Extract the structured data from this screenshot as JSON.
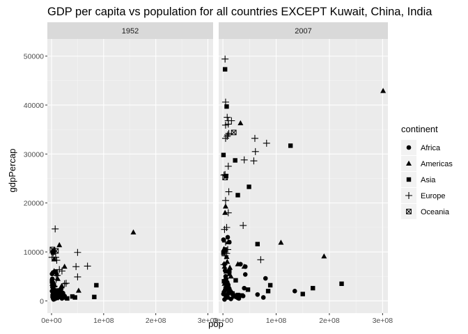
{
  "chart_data": {
    "type": "scatter",
    "title": "GDP per capita vs population for all countries EXCEPT Kuwait, China, India",
    "xlabel": "pop",
    "ylabel": "gdpPercap",
    "xlim": [
      -8000000,
      310000000
    ],
    "ylim": [
      -2500,
      53500
    ],
    "x_ticks": [
      0,
      100000000,
      200000000,
      300000000
    ],
    "x_tick_labels": [
      "0e+00",
      "1e+08",
      "2e+08",
      "3e+08"
    ],
    "y_ticks": [
      0,
      10000,
      20000,
      30000,
      40000,
      50000
    ],
    "y_tick_labels": [
      "0",
      "10000",
      "20000",
      "30000",
      "40000",
      "50000"
    ],
    "panel_background": "#ebebeb",
    "strip_background": "#d9d9d9",
    "grid": true,
    "legend": {
      "title": "continent",
      "position": "right",
      "entries": [
        {
          "label": "Africa",
          "shape": "circle"
        },
        {
          "label": "Americas",
          "shape": "triangle"
        },
        {
          "label": "Asia",
          "shape": "square"
        },
        {
          "label": "Europe",
          "shape": "plus"
        },
        {
          "label": "Oceania",
          "shape": "square-cross"
        }
      ]
    },
    "panels": [
      {
        "label": "1952",
        "series": [
          {
            "continent": "Africa",
            "points": [
              [
                3000000,
                500
              ],
              [
                5000000,
                800
              ],
              [
                2000000,
                1200
              ],
              [
                8000000,
                1500
              ],
              [
                1000000,
                2000
              ],
              [
                4000000,
                1000
              ],
              [
                6000000,
                600
              ],
              [
                10000000,
                900
              ],
              [
                3000000,
                2500
              ],
              [
                2000000,
                3500
              ],
              [
                7000000,
                1800
              ],
              [
                12000000,
                700
              ],
              [
                15000000,
                1100
              ],
              [
                20000000,
                500
              ],
              [
                1500000,
                4500
              ],
              [
                4000000,
                300
              ],
              [
                9000000,
                1300
              ],
              [
                22000000,
                1600
              ],
              [
                5000000,
                2200
              ],
              [
                3000000,
                1700
              ],
              [
                6000000,
                400
              ],
              [
                2000000,
                800
              ],
              [
                11000000,
                1000
              ],
              [
                1000000,
                5500
              ],
              [
                3000000,
                5800
              ],
              [
                2000000,
                2800
              ],
              [
                13000000,
                2100
              ],
              [
                8000000,
                500
              ],
              [
                5000000,
                1400
              ],
              [
                25000000,
                1000
              ]
            ]
          },
          {
            "continent": "Americas",
            "points": [
              [
                157000000,
                14000
              ],
              [
                15000000,
                11400
              ],
              [
                5000000,
                8500
              ],
              [
                25000000,
                7000
              ],
              [
                9000000,
                5900
              ],
              [
                52000000,
                2100
              ],
              [
                12000000,
                4500
              ],
              [
                4000000,
                3800
              ],
              [
                6000000,
                3200
              ],
              [
                3000000,
                2600
              ],
              [
                2000000,
                2300
              ],
              [
                8000000,
                2000
              ],
              [
                10000000,
                5500
              ],
              [
                1500000,
                3500
              ],
              [
                5000000,
                6100
              ],
              [
                7000000,
                1700
              ],
              [
                20000000,
                3000
              ],
              [
                18000000,
                2800
              ]
            ]
          },
          {
            "continent": "Asia",
            "points": [
              [
                4000000,
                10300
              ],
              [
                86000000,
                3200
              ],
              [
                82000000,
                800
              ],
              [
                3000000,
                9900
              ],
              [
                8000000,
                6000
              ],
              [
                20000000,
                1200
              ],
              [
                40000000,
                900
              ],
              [
                45000000,
                700
              ],
              [
                10000000,
                600
              ],
              [
                22000000,
                1000
              ],
              [
                30000000,
                500
              ],
              [
                14000000,
                1800
              ],
              [
                5000000,
                2000
              ],
              [
                2000000,
                3000
              ],
              [
                6000000,
                1500
              ],
              [
                12000000,
                800
              ],
              [
                1000000,
                4000
              ],
              [
                18000000,
                2200
              ],
              [
                3000000,
                1300
              ],
              [
                25000000,
                700
              ],
              [
                4000000,
                600
              ],
              [
                7000000,
                1100
              ]
            ]
          },
          {
            "continent": "Europe",
            "points": [
              [
                7000000,
                14700
              ],
              [
                69000000,
                7100
              ],
              [
                50000000,
                9900
              ],
              [
                47000000,
                7000
              ],
              [
                50000000,
                4900
              ],
              [
                10000000,
                8300
              ],
              [
                20000000,
                6100
              ],
              [
                8000000,
                8900
              ],
              [
                11000000,
                5200
              ],
              [
                3000000,
                9800
              ],
              [
                4000000,
                10100
              ],
              [
                28000000,
                3600
              ],
              [
                15000000,
                6400
              ],
              [
                9000000,
                4400
              ],
              [
                5000000,
                3000
              ],
              [
                25000000,
                3500
              ],
              [
                1000000,
                8900
              ],
              [
                7000000,
                2500
              ]
            ]
          },
          {
            "continent": "Oceania",
            "points": [
              [
                8500000,
                10200
              ],
              [
                1900000,
                10500
              ]
            ]
          }
        ]
      },
      {
        "label": "2007",
        "series": [
          {
            "continent": "Africa",
            "points": [
              [
                135000000,
                2000
              ],
              [
                76000000,
                700
              ],
              [
                65000000,
                1300
              ],
              [
                80000000,
                4600
              ],
              [
                42000000,
                5400
              ],
              [
                42000000,
                7000
              ],
              [
                33000000,
                7500
              ],
              [
                38000000,
                1000
              ],
              [
                20000000,
                900
              ],
              [
                9000000,
                13000
              ],
              [
                12000000,
                12000
              ],
              [
                1000000,
                12500
              ],
              [
                2000000,
                10000
              ],
              [
                3000000,
                7500
              ],
              [
                4000000,
                6200
              ],
              [
                5000000,
                5000
              ],
              [
                6000000,
                4500
              ],
              [
                8000000,
                3800
              ],
              [
                10000000,
                3000
              ],
              [
                12000000,
                2500
              ],
              [
                14000000,
                2000
              ],
              [
                16000000,
                1700
              ],
              [
                18000000,
                1500
              ],
              [
                20000000,
                1200
              ],
              [
                22000000,
                1000
              ],
              [
                25000000,
                800
              ],
              [
                28000000,
                600
              ],
              [
                30000000,
                500
              ],
              [
                2000000,
                1800
              ],
              [
                4000000,
                2200
              ],
              [
                6000000,
                2800
              ],
              [
                10000000,
                1500
              ],
              [
                15000000,
                400
              ],
              [
                3000000,
                300
              ],
              [
                7000000,
                900
              ],
              [
                1000000,
                1400
              ],
              [
                5000000,
                1100
              ],
              [
                9000000,
                700
              ],
              [
                11000000,
                2000
              ],
              [
                40000000,
                2600
              ]
            ]
          },
          {
            "continent": "Americas",
            "points": [
              [
                301000000,
                42900
              ],
              [
                190000000,
                9100
              ],
              [
                109000000,
                11900
              ],
              [
                33000000,
                36300
              ],
              [
                5000000,
                19300
              ],
              [
                4000000,
                18000
              ],
              [
                10000000,
                12000
              ],
              [
                8000000,
                8000
              ],
              [
                3000000,
                7000
              ],
              [
                6000000,
                6000
              ],
              [
                12000000,
                5500
              ],
              [
                15000000,
                5000
              ],
              [
                4000000,
                4500
              ],
              [
                9000000,
                3800
              ],
              [
                28000000,
                7500
              ],
              [
                40000000,
                7000
              ],
              [
                2000000,
                10600
              ],
              [
                7000000,
                9000
              ],
              [
                13000000,
                6800
              ],
              [
                3000000,
                3500
              ]
            ]
          },
          {
            "continent": "Asia",
            "points": [
              [
                4000000,
                47300
              ],
              [
                7000000,
                39700
              ],
              [
                127000000,
                31700
              ],
              [
                1000000,
                29800
              ],
              [
                23000000,
                28700
              ],
              [
                6000000,
                25500
              ],
              [
                28000000,
                21600
              ],
              [
                49000000,
                23300
              ],
              [
                4000000,
                10500
              ],
              [
                65000000,
                11600
              ],
              [
                1000000,
                9800
              ],
              [
                89000000,
                3200
              ],
              [
                150000000,
                1400
              ],
              [
                169000000,
                2600
              ],
              [
                223000000,
                3500
              ],
              [
                47000000,
                2300
              ],
              [
                85000000,
                2000
              ],
              [
                24000000,
                4200
              ],
              [
                2000000,
                4000
              ],
              [
                10000000,
                3000
              ],
              [
                18000000,
                1500
              ],
              [
                28000000,
                1200
              ],
              [
                5000000,
                2500
              ],
              [
                12000000,
                6000
              ],
              [
                35000000,
                1100
              ]
            ]
          },
          {
            "continent": "Europe",
            "points": [
              [
                4000000,
                49400
              ],
              [
                5000000,
                40600
              ],
              [
                8000000,
                37500
              ],
              [
                10000000,
                36800
              ],
              [
                10000000,
                36100
              ],
              [
                16000000,
                36800
              ],
              [
                5000000,
                35900
              ],
              [
                9000000,
                33900
              ],
              [
                5000000,
                33200
              ],
              [
                11000000,
                34200
              ],
              [
                8000000,
                33600
              ],
              [
                60000000,
                33200
              ],
              [
                82000000,
                32200
              ],
              [
                61000000,
                30500
              ],
              [
                40000000,
                28800
              ],
              [
                58000000,
                28600
              ],
              [
                10000000,
                27500
              ],
              [
                4000000,
                25800
              ],
              [
                2000000,
                25700
              ],
              [
                11000000,
                22300
              ],
              [
                5000000,
                20500
              ],
              [
                10000000,
                18000
              ],
              [
                7000000,
                15000
              ],
              [
                38000000,
                15400
              ],
              [
                71000000,
                8400
              ],
              [
                3000000,
                14600
              ],
              [
                5000000,
                12000
              ],
              [
                9000000,
                10500
              ],
              [
                4000000,
                9200
              ],
              [
                7000000,
                9700
              ],
              [
                2000000,
                7400
              ]
            ]
          },
          {
            "continent": "Oceania",
            "points": [
              [
                20400000,
                34400
              ],
              [
                4100000,
                25200
              ]
            ]
          }
        ]
      }
    ]
  }
}
